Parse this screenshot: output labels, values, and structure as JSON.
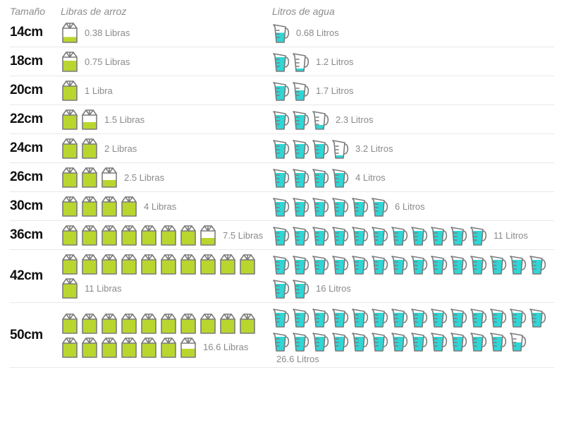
{
  "columns": {
    "size": "Tamaño",
    "rice": "Libras de arroz",
    "water": "Litros de agua"
  },
  "colors": {
    "rice_fill": "#b9d62f",
    "rice_stroke": "#7b7b7b",
    "water_fill": "#2fd6d6",
    "water_stroke": "#7b7b7b",
    "row_border": "#e8e8e8",
    "text_muted": "#8a8a8a",
    "text_strong": "#111111",
    "background": "#ffffff"
  },
  "icon": {
    "width": 26,
    "height": 32
  },
  "rows": [
    {
      "size": "14cm",
      "rice_full": 0,
      "rice_partial": 0.38,
      "rice_label": "0.38 Libras",
      "water_full": 0,
      "water_partial": 0.68,
      "water_label": "0.68 Litros"
    },
    {
      "size": "18cm",
      "rice_full": 0,
      "rice_partial": 0.75,
      "rice_label": "0.75 Libras",
      "water_full": 1,
      "water_partial": 0.2,
      "water_label": "1.2 Litros"
    },
    {
      "size": "20cm",
      "rice_full": 1,
      "rice_partial": 0,
      "rice_label": "1 Libra",
      "water_full": 1,
      "water_partial": 0.7,
      "water_label": "1.7 Litros"
    },
    {
      "size": "22cm",
      "rice_full": 1,
      "rice_partial": 0.5,
      "rice_label": "1.5 Libras",
      "water_full": 2,
      "water_partial": 0.3,
      "water_label": "2.3 Litros"
    },
    {
      "size": "24cm",
      "rice_full": 2,
      "rice_partial": 0,
      "rice_label": "2 Libras",
      "water_full": 3,
      "water_partial": 0.2,
      "water_label": "3.2 Litros"
    },
    {
      "size": "26cm",
      "rice_full": 2,
      "rice_partial": 0.5,
      "rice_label": "2.5 Libras",
      "water_full": 4,
      "water_partial": 0,
      "water_label": "4 Litros"
    },
    {
      "size": "30cm",
      "rice_full": 4,
      "rice_partial": 0,
      "rice_label": "4 Libras",
      "water_full": 6,
      "water_partial": 0,
      "water_label": "6 Litros"
    },
    {
      "size": "36cm",
      "rice_full": 7,
      "rice_partial": 0.5,
      "rice_label": "7.5 Libras",
      "water_full": 11,
      "water_partial": 0,
      "water_label": "11 Litros"
    },
    {
      "size": "42cm",
      "rice_full": 11,
      "rice_partial": 0,
      "rice_label": "11 Libras",
      "water_full": 16,
      "water_partial": 0,
      "water_label": "16 Litros"
    },
    {
      "size": "50cm",
      "rice_full": 16,
      "rice_partial": 0.6,
      "rice_label": "16.6 Libras",
      "water_full": 26,
      "water_partial": 0.6,
      "water_label": "26.6 Litros"
    }
  ]
}
